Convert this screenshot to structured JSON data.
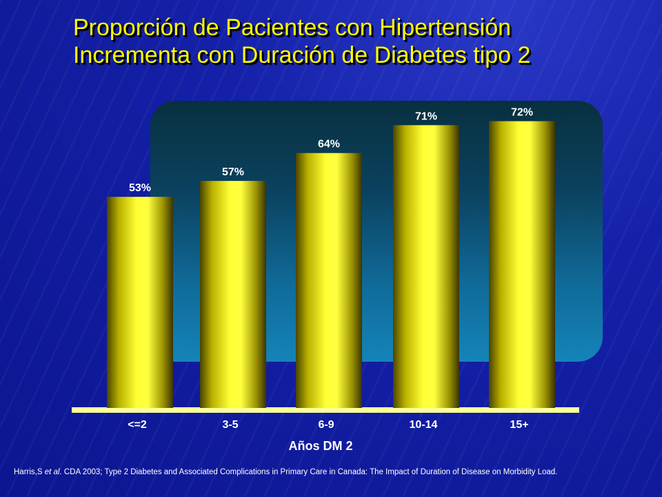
{
  "title": {
    "line1": "Proporción de Pacientes con Hipertensión",
    "line2": "Incrementa con Duración de Diabetes tipo 2"
  },
  "colors": {
    "background": "#1420a8",
    "title": "#ffff00",
    "bar": "#ffff33",
    "baseline": "#ffff99"
  },
  "chart_data": {
    "type": "bar",
    "categories": [
      "<=2",
      "3-5",
      "6-9",
      "10-14",
      "15+"
    ],
    "values": [
      53,
      57,
      64,
      71,
      72
    ],
    "value_labels": [
      "53%",
      "57%",
      "64%",
      "71%",
      "72%"
    ],
    "title": "",
    "xlabel": "Años DM 2",
    "ylabel": "",
    "grid": false
  },
  "citation": {
    "author": "Harris,S",
    "etal": "et al.",
    "rest": " CDA 2003; Type 2 Diabetes and Associated Complications in Primary Care in Canada: The Impact of Duration of Disease on Morbidity Load."
  }
}
